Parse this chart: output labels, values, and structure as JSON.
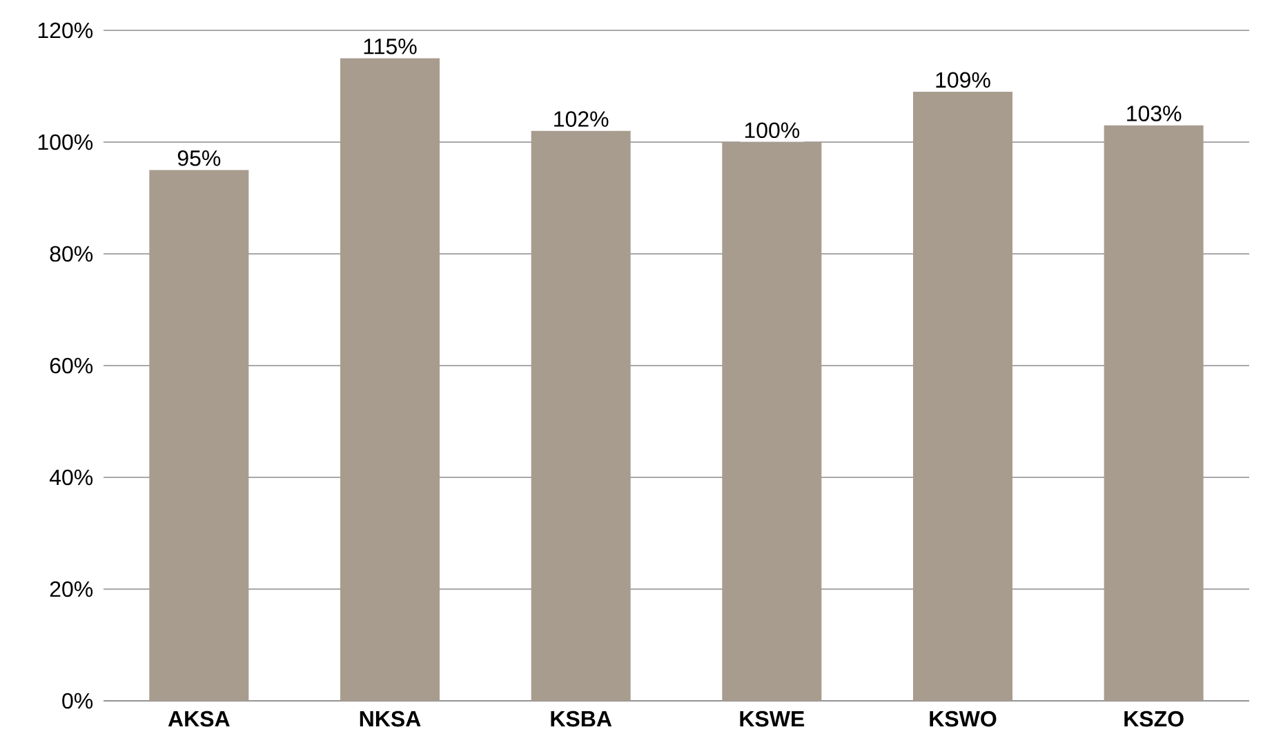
{
  "chart_data": {
    "type": "bar",
    "categories": [
      "AKSA",
      "NKSA",
      "KSBA",
      "KSWE",
      "KSWO",
      "KSZO"
    ],
    "values": [
      95,
      115,
      102,
      100,
      109,
      103
    ],
    "value_labels": [
      "95%",
      "115%",
      "102%",
      "100%",
      "109%",
      "103%"
    ],
    "color": "#a89c8e",
    "ylim": [
      0,
      120
    ],
    "yticks": [
      {
        "value": 0,
        "label": "0%"
      },
      {
        "value": 20,
        "label": "20%"
      },
      {
        "value": 40,
        "label": "40%"
      },
      {
        "value": 60,
        "label": "60%"
      },
      {
        "value": 80,
        "label": "80%"
      },
      {
        "value": 100,
        "label": "100%"
      },
      {
        "value": 120,
        "label": "120%"
      }
    ],
    "grid": "y"
  }
}
